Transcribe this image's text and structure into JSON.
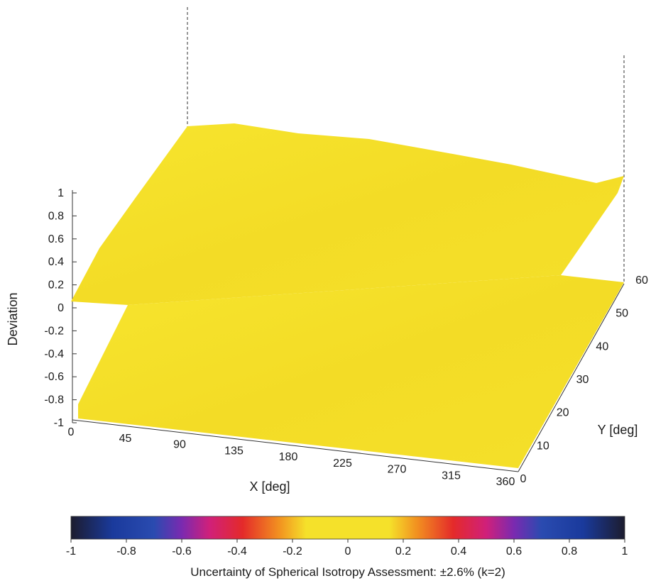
{
  "chart_data": {
    "type": "surface",
    "zlabel": "Deviation",
    "xlabel": "X [deg]",
    "ylabel": "Y [deg]",
    "z_ticks": [
      "1",
      "0.8",
      "0.6",
      "0.4",
      "0.2",
      "0",
      "-0.2",
      "-0.4",
      "-0.6",
      "-0.8",
      "-1"
    ],
    "x_ticks": [
      "0",
      "45",
      "90",
      "135",
      "180",
      "225",
      "270",
      "315",
      "360"
    ],
    "y_ticks": [
      "0",
      "10",
      "20",
      "30",
      "40",
      "50",
      "60"
    ],
    "zlim": [
      -1,
      1
    ],
    "xlim": [
      0,
      360
    ],
    "ylim": [
      0,
      60
    ],
    "surface_value": 0.05,
    "surface_color": "#f5e12a",
    "colorbar": {
      "ticks": [
        "-1",
        "-0.8",
        "-0.6",
        "-0.4",
        "-0.2",
        "0",
        "0.2",
        "0.4",
        "0.6",
        "0.8",
        "1"
      ],
      "range": [
        -1,
        1
      ],
      "stops": [
        {
          "v": -1.0,
          "color": "#1c1c2e"
        },
        {
          "v": -0.85,
          "color": "#1a3a9c"
        },
        {
          "v": -0.7,
          "color": "#2a4bb0"
        },
        {
          "v": -0.6,
          "color": "#7a2ab0"
        },
        {
          "v": -0.5,
          "color": "#d0207a"
        },
        {
          "v": -0.38,
          "color": "#e42a2a"
        },
        {
          "v": -0.25,
          "color": "#f29020"
        },
        {
          "v": -0.15,
          "color": "#f5e12a"
        },
        {
          "v": 0.15,
          "color": "#f5e12a"
        },
        {
          "v": 0.25,
          "color": "#f29020"
        },
        {
          "v": 0.38,
          "color": "#e42a2a"
        },
        {
          "v": 0.5,
          "color": "#d0207a"
        },
        {
          "v": 0.6,
          "color": "#7a2ab0"
        },
        {
          "v": 0.7,
          "color": "#2a4bb0"
        },
        {
          "v": 0.85,
          "color": "#1a3a9c"
        },
        {
          "v": 1.0,
          "color": "#1c1c2e"
        }
      ]
    },
    "caption": "Uncertainty of Spherical Isotropy Assessment: ±2.6% (k=2)"
  }
}
